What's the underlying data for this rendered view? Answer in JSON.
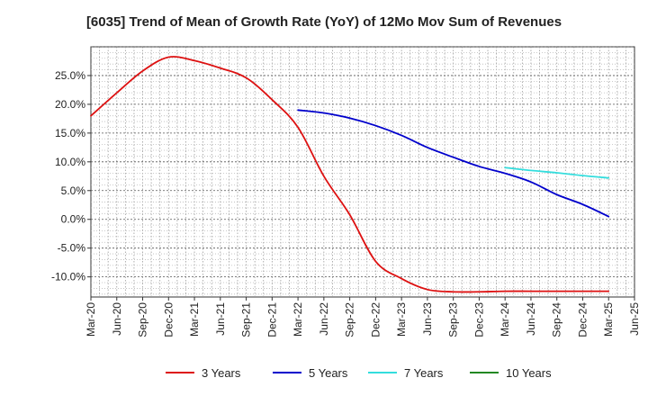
{
  "chart_data": {
    "type": "line",
    "title": "[6035]  Trend of Mean of Growth Rate (YoY) of 12Mo Mov Sum of Revenues",
    "xlabel": "",
    "ylabel": "",
    "x_ticks": [
      "Mar-20",
      "Jun-20",
      "Sep-20",
      "Dec-20",
      "Mar-21",
      "Jun-21",
      "Sep-21",
      "Dec-21",
      "Mar-22",
      "Jun-22",
      "Sep-22",
      "Dec-22",
      "Mar-23",
      "Jun-23",
      "Sep-23",
      "Dec-23",
      "Mar-24",
      "Jun-24",
      "Sep-24",
      "Dec-24",
      "Mar-25",
      "Jun-25"
    ],
    "y_ticks": [
      25.0,
      20.0,
      15.0,
      10.0,
      5.0,
      0.0,
      -5.0,
      -10.0
    ],
    "y_tick_labels": [
      "25.0%",
      "20.0%",
      "15.0%",
      "10.0%",
      "5.0%",
      "0.0%",
      "-5.0%",
      "-10.0%"
    ],
    "ylim": [
      -13.5,
      30.0
    ],
    "xlim": [
      0,
      63
    ],
    "grid": true,
    "legend_position": "bottom",
    "series": [
      {
        "name": "3 Years",
        "color": "#dd1111",
        "x": [
          0,
          3,
          6,
          9,
          12,
          15,
          18,
          21,
          24,
          27,
          30,
          33,
          36,
          39,
          42,
          45,
          48,
          51,
          54,
          57,
          60
        ],
        "values": [
          18.0,
          22.0,
          25.8,
          28.2,
          27.6,
          26.3,
          24.6,
          20.8,
          16.0,
          7.5,
          0.8,
          -7.3,
          -10.3,
          -12.2,
          -12.6,
          -12.6,
          -12.5,
          -12.5,
          -12.5,
          -12.5,
          -12.5
        ]
      },
      {
        "name": "5 Years",
        "color": "#0000cc",
        "x": [
          24,
          27,
          30,
          33,
          36,
          39,
          42,
          45,
          48,
          51,
          54,
          57,
          60
        ],
        "values": [
          19.0,
          18.5,
          17.6,
          16.3,
          14.6,
          12.5,
          10.8,
          9.2,
          8.0,
          6.5,
          4.3,
          2.6,
          0.5
        ]
      },
      {
        "name": "7 Years",
        "color": "#33dddd",
        "x": [
          48,
          51,
          54,
          57,
          60
        ],
        "values": [
          9.0,
          8.5,
          8.1,
          7.6,
          7.2
        ]
      },
      {
        "name": "10 Years",
        "color": "#228822",
        "x": [],
        "values": []
      }
    ]
  }
}
